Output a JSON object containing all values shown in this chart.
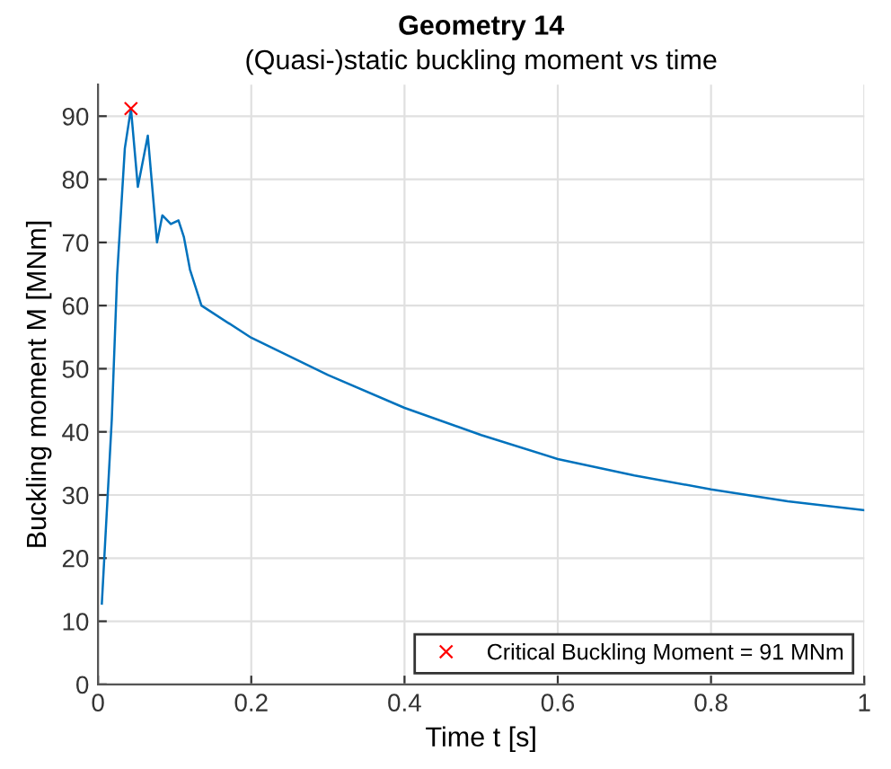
{
  "chart_data": {
    "type": "line",
    "title": "Geometry 14",
    "subtitle": "(Quasi-)static buckling moment vs time",
    "xlabel": "Time t [s]",
    "ylabel": "Buckling moment M [MNm]",
    "xlim": [
      0,
      1
    ],
    "ylim": [
      0,
      95
    ],
    "xticks": [
      0,
      0.2,
      0.4,
      0.6,
      0.8,
      1
    ],
    "yticks": [
      0,
      10,
      20,
      30,
      40,
      50,
      60,
      70,
      80,
      90
    ],
    "grid": true,
    "legend": "bottom right",
    "series": [
      {
        "color": "#0072bd",
        "x": [
          0.005,
          0.018,
          0.025,
          0.035,
          0.043,
          0.052,
          0.065,
          0.077,
          0.084,
          0.095,
          0.105,
          0.112,
          0.12,
          0.135,
          0.2,
          0.3,
          0.4,
          0.5,
          0.6,
          0.7,
          0.8,
          0.9,
          1.0
        ],
        "values": [
          12.8,
          42,
          64.9,
          84.9,
          91.2,
          78.8,
          86.9,
          70,
          74.3,
          72.9,
          73.5,
          70.9,
          65.7,
          60,
          54.9,
          49,
          43.8,
          39.5,
          35.7,
          33.1,
          30.9,
          29,
          27.6
        ]
      },
      {
        "type": "scatter",
        "name": "Critical Buckling Moment = 91 MNm",
        "color": "#ff0000",
        "marker": "cross",
        "x": [
          0.043
        ],
        "values": [
          91.2
        ]
      }
    ]
  }
}
